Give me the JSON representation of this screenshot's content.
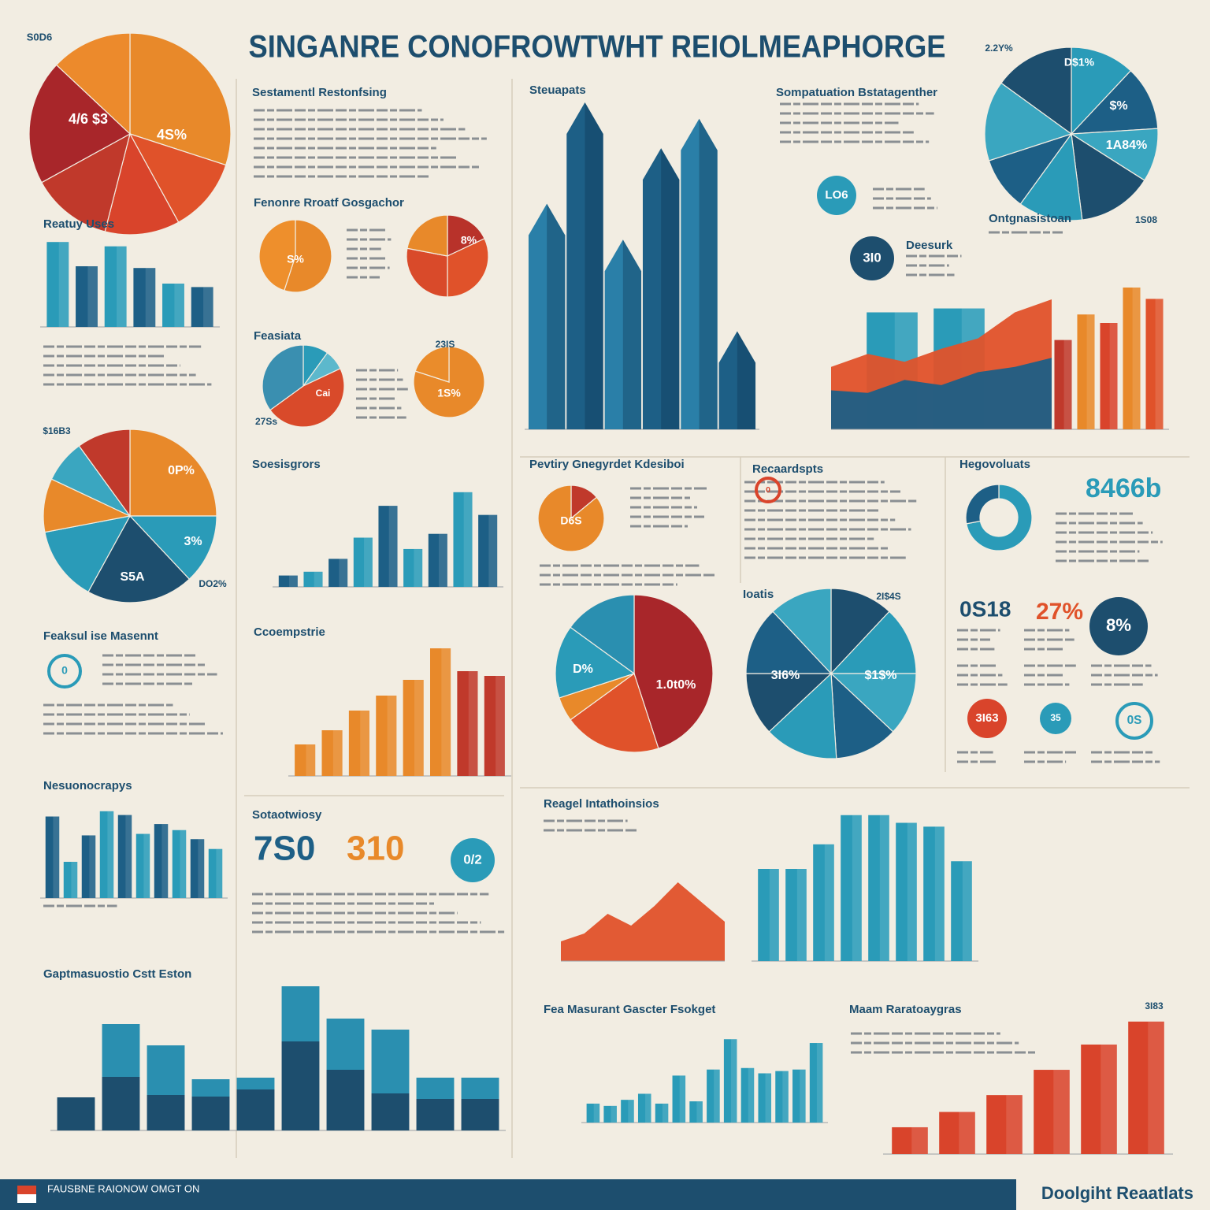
{
  "title": "SINGANRE CONOFROWTWHT REIOLMEAPHORGE",
  "headings": [
    "Sompatuation Bstatagenther",
    "Recaardspts",
    "Feaksul ise Masennt",
    "Sotaotwiosy",
    "Sestamentl Restonfsing"
  ],
  "stats": [
    {
      "text": "7S0",
      "color": "#1d5f86"
    },
    {
      "text": "310",
      "color": "#e8892a"
    },
    {
      "text": "8466b",
      "color": "#2a9bb8"
    },
    {
      "text": "0S18",
      "color": "#1d4e6e"
    },
    {
      "text": "27%",
      "color": "#e0522a"
    }
  ],
  "badges": [
    {
      "text": "LO6",
      "color": "#2a9bb8",
      "style": "fill"
    },
    {
      "text": "3I0",
      "color": "#1d4e6e",
      "style": "fill"
    },
    {
      "text": "8%",
      "color": "#1d4e6e",
      "style": "fill"
    },
    {
      "text": "3I63",
      "color": "#d9442b",
      "style": "fill"
    },
    {
      "text": "35",
      "color": "#2a9bb8",
      "style": "fill"
    },
    {
      "text": "0S",
      "color": "#2a9bb8",
      "style": "ring"
    },
    {
      "text": "0/2",
      "color": "#2a9bb8",
      "style": "fill"
    },
    {
      "text": "0",
      "color": "#2a9bb8",
      "style": "ring"
    },
    {
      "text": "0",
      "color": "#d9442b",
      "style": "ring"
    }
  ],
  "footer": {
    "left": "FAUSBNE RAIONOW OMGT ON",
    "right": "Doolgiht Reaatlats"
  },
  "chart_data": [
    {
      "type": "pie",
      "values": [
        30,
        12,
        12,
        13,
        20,
        13
      ],
      "colors": [
        "#e8892a",
        "#e0522a",
        "#d9442b",
        "#c0392b",
        "#a8262a",
        "#ec8a2c"
      ],
      "annotations": [
        "S0D6",
        "4/6 $3",
        "4S%"
      ]
    },
    {
      "type": "bar",
      "title": "Reatuy Uses",
      "values": [
        98,
        70,
        93,
        68,
        50,
        46
      ],
      "colors": [
        "#2a9bb8",
        "#1d5f86"
      ],
      "ylim": [
        0,
        100
      ]
    },
    {
      "type": "pie",
      "title": "Fenonre Rroatf Gosgachor",
      "values": [
        55,
        45
      ],
      "colors": [
        "#e8892a",
        "#ee8f2c"
      ],
      "annotations": [
        "S%"
      ]
    },
    {
      "type": "pie",
      "values": [
        18,
        32,
        28,
        22
      ],
      "colors": [
        "#b8322a",
        "#e0522a",
        "#d94a2a",
        "#e8892a"
      ],
      "annotations": [
        "8%"
      ]
    },
    {
      "type": "pie",
      "title": "Feasiata",
      "values": [
        10,
        8,
        47,
        35
      ],
      "colors": [
        "#2a9bb8",
        "#5cb8cc",
        "#d94a2a",
        "#3a8fb0"
      ],
      "annotations": [
        "Cai",
        "27Ss"
      ]
    },
    {
      "type": "pie",
      "values": [
        80,
        20
      ],
      "colors": [
        "#e8892a",
        "#ea8c2b"
      ],
      "annotations": [
        "1S%",
        "23IS"
      ]
    },
    {
      "type": "bar",
      "title": "Steuapats",
      "values": [
        69,
        100,
        58,
        86,
        95,
        30
      ],
      "colors": [
        "#2a7fa8",
        "#1d5f86"
      ],
      "ylim": [
        0,
        100
      ]
    },
    {
      "type": "bar",
      "values": [
        90,
        93
      ],
      "colors": [
        "#2a9bb8"
      ],
      "ylim": [
        0,
        100
      ]
    },
    {
      "type": "area",
      "title": "Deesurk",
      "series": [
        {
          "values": [
            48,
            58,
            52,
            62,
            70,
            90,
            100
          ],
          "color": "#e0522a"
        },
        {
          "values": [
            30,
            28,
            38,
            34,
            44,
            48,
            55
          ],
          "color": "#1d5f86"
        }
      ],
      "ylim": [
        0,
        100
      ]
    },
    {
      "type": "pie",
      "values": [
        12,
        12,
        10,
        14,
        12,
        10,
        15,
        15
      ],
      "colors": [
        "#2a9bb8",
        "#1d5f86",
        "#3aa6c0",
        "#1d4e6e",
        "#2a9bb8",
        "#1d5f86",
        "#3aa6c0",
        "#1d4e6e"
      ],
      "annotations": [
        "D$1%",
        "$%",
        "1A84%",
        "2.2Y%"
      ]
    },
    {
      "type": "bar",
      "title": "Ontgnasistoan",
      "values": [
        63,
        81,
        75,
        100,
        92
      ],
      "colors": [
        "#c0392b",
        "#e8892a",
        "#d9442b",
        "#e8892a",
        "#e0522a"
      ],
      "ylim": [
        0,
        100
      ],
      "annotations": [
        "1S08"
      ]
    },
    {
      "type": "pie",
      "values": [
        25,
        13,
        20,
        14,
        10,
        8,
        10
      ],
      "colors": [
        "#e8892a",
        "#2a9bb8",
        "#1d4e6e",
        "#2a9bb8",
        "#e8892a",
        "#3aa6c0",
        "#c0392b"
      ],
      "annotations": [
        "0P%",
        "3%",
        "S5A",
        "$16B3",
        "DO2%"
      ]
    },
    {
      "type": "bar",
      "title": "Soesisgrors",
      "values": [
        15,
        20,
        37,
        65,
        107,
        50,
        70,
        125,
        95
      ],
      "colors": [
        "#1d5f86",
        "#2a9bb8"
      ],
      "ylim": [
        0,
        130
      ]
    },
    {
      "type": "pie",
      "title": "Pevtiry Gnegyrdet Kdesiboi",
      "values": [
        14,
        86
      ],
      "colors": [
        "#c0392b",
        "#e8892a"
      ],
      "annotations": [
        "D6S"
      ]
    },
    {
      "type": "donut",
      "title": "Hegovoluats",
      "values": [
        72,
        28
      ],
      "colors": [
        "#2a9bb8",
        "#1d5f86"
      ]
    },
    {
      "type": "bar",
      "title": "Ccoempstrie",
      "values": [
        40,
        58,
        83,
        102,
        122,
        162,
        133,
        127
      ],
      "colors": [
        "#e8892a",
        "#e8892a",
        "#e8892a",
        "#e8892a",
        "#e8892a",
        "#e8892a",
        "#c0392b",
        "#c0392b"
      ],
      "ylim": [
        0,
        170
      ]
    },
    {
      "type": "pie",
      "values": [
        45,
        20,
        5,
        15,
        15
      ],
      "colors": [
        "#a8262a",
        "#e0522a",
        "#e8892a",
        "#2a9bb8",
        "#2a8fb0"
      ],
      "annotations": [
        "1.0t0%",
        "D%"
      ]
    },
    {
      "type": "pie",
      "title": "Ioatis",
      "values": [
        12,
        13,
        12,
        12,
        14,
        12,
        13,
        12
      ],
      "colors": [
        "#1d4e6e",
        "#2a9bb8",
        "#3aa6c0",
        "#1d5f86",
        "#2a9bb8",
        "#1d4e6e",
        "#1d5f86",
        "#3aa6c0"
      ],
      "annotations": [
        "3I6%",
        "$1$%",
        "2I$4S"
      ]
    },
    {
      "type": "bar",
      "title": "Nesuonocrapys",
      "values": [
        108,
        48,
        83,
        115,
        110,
        85,
        98,
        90,
        78,
        65
      ],
      "colors": [
        "#1d5f86",
        "#2a9bb8"
      ],
      "ylim": [
        0,
        120
      ]
    },
    {
      "type": "area",
      "title": "Reagel Intathoinsios",
      "series": [
        {
          "values": [
            25,
            35,
            60,
            45,
            70,
            100,
            75,
            50
          ],
          "color": "#e0522a"
        }
      ],
      "ylim": [
        0,
        155
      ]
    },
    {
      "type": "bar",
      "values": [
        120,
        120,
        152,
        190,
        190,
        180,
        175,
        130
      ],
      "colors": [
        "#2a9bb8"
      ],
      "ylim": [
        0,
        200
      ]
    },
    {
      "type": "bar",
      "title": "Gaptmasuostio Cstt Eston",
      "series": [
        {
          "values": [
            42,
            68,
            45,
            43,
            52,
            113,
            77,
            47,
            40,
            40
          ],
          "color": "#1d4e6e"
        },
        {
          "values": [
            0,
            67,
            63,
            22,
            15,
            70,
            65,
            81,
            27,
            27
          ],
          "color": "#2a8fb0"
        }
      ],
      "ylim": [
        0,
        190
      ]
    },
    {
      "type": "bar",
      "title": "Fea Masurant Gascter Fsokget",
      "values": [
        25,
        22,
        30,
        38,
        25,
        62,
        28,
        70,
        110,
        72,
        65,
        68,
        70,
        105
      ],
      "colors": [
        "#2a9bb8"
      ],
      "ylim": [
        0,
        130
      ]
    },
    {
      "type": "bar",
      "title": "Maam Raratoaygras",
      "values": [
        35,
        55,
        77,
        110,
        143,
        173
      ],
      "colors": [
        "#d9442b"
      ],
      "ylim": [
        0,
        180
      ],
      "annotations": [
        "3I83"
      ]
    }
  ]
}
